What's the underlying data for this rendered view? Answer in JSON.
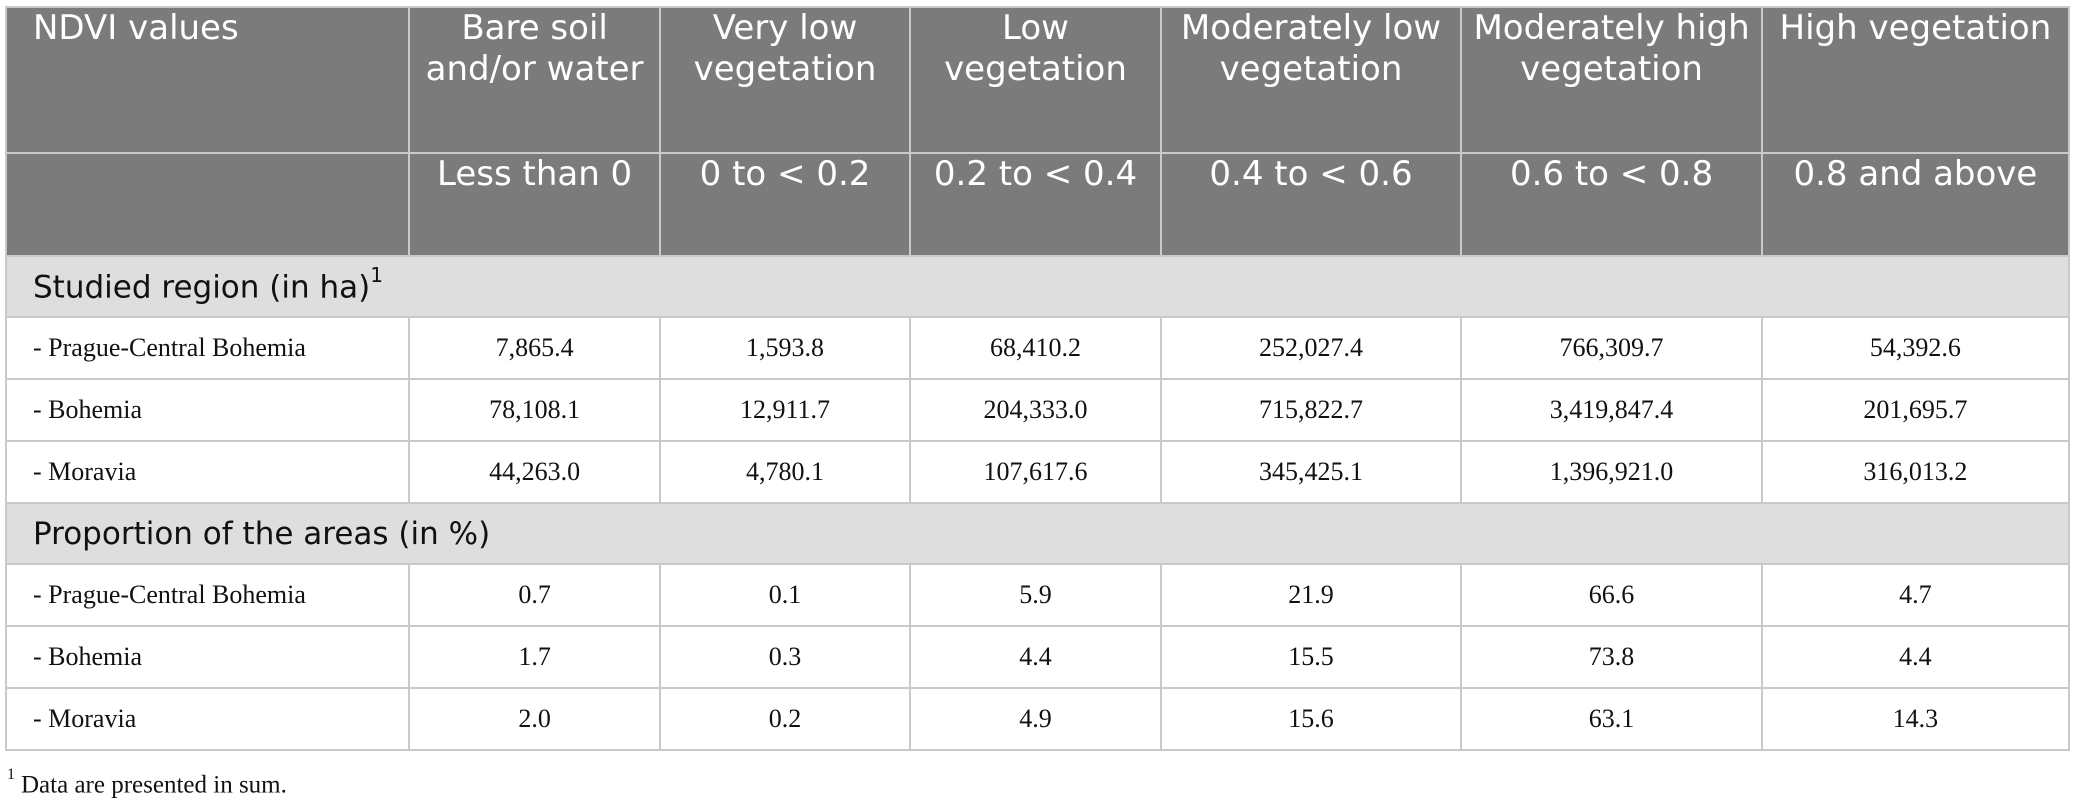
{
  "table": {
    "header": {
      "row_label": "NDVI values",
      "classes": [
        "Bare soil and/or water",
        "Very low vegetation",
        "Low vegetation",
        "Moderately low vegetation",
        "Moderately high vegetation",
        "High vegetation"
      ],
      "ranges": [
        "Less than 0",
        "0 to < 0.2",
        "0.2 to < 0.4",
        "0.4 to < 0.6",
        "0.6 to < 0.8",
        "0.8 and above"
      ]
    },
    "sections": [
      {
        "title": "Studied region (in ha)",
        "title_sup": "1",
        "rows": [
          {
            "label": "- Prague-Central Bohemia",
            "values": [
              "7,865.4",
              "1,593.8",
              "68,410.2",
              "252,027.4",
              "766,309.7",
              "54,392.6"
            ]
          },
          {
            "label": "- Bohemia",
            "values": [
              "78,108.1",
              "12,911.7",
              "204,333.0",
              "715,822.7",
              "3,419,847.4",
              "201,695.7"
            ]
          },
          {
            "label": "- Moravia",
            "values": [
              "44,263.0",
              "4,780.1",
              "107,617.6",
              "345,425.1",
              "1,396,921.0",
              "316,013.2"
            ]
          }
        ]
      },
      {
        "title": "Proportion of the areas (in %)",
        "title_sup": "",
        "rows": [
          {
            "label": "- Prague-Central Bohemia",
            "values": [
              "0.7",
              "0.1",
              "5.9",
              "21.9",
              "66.6",
              "4.7"
            ]
          },
          {
            "label": "- Bohemia",
            "values": [
              "1.7",
              "0.3",
              "4.4",
              "15.5",
              "73.8",
              "4.4"
            ]
          },
          {
            "label": "- Moravia",
            "values": [
              "2.0",
              "0.2",
              "4.9",
              "15.6",
              "63.1",
              "14.3"
            ]
          }
        ]
      }
    ]
  },
  "footnote": {
    "marker": "1",
    "text": "Data are presented in sum."
  },
  "colors": {
    "header_bg": "#7b7b7b",
    "section_bg": "#dedede",
    "border": "#c9c9c9"
  }
}
